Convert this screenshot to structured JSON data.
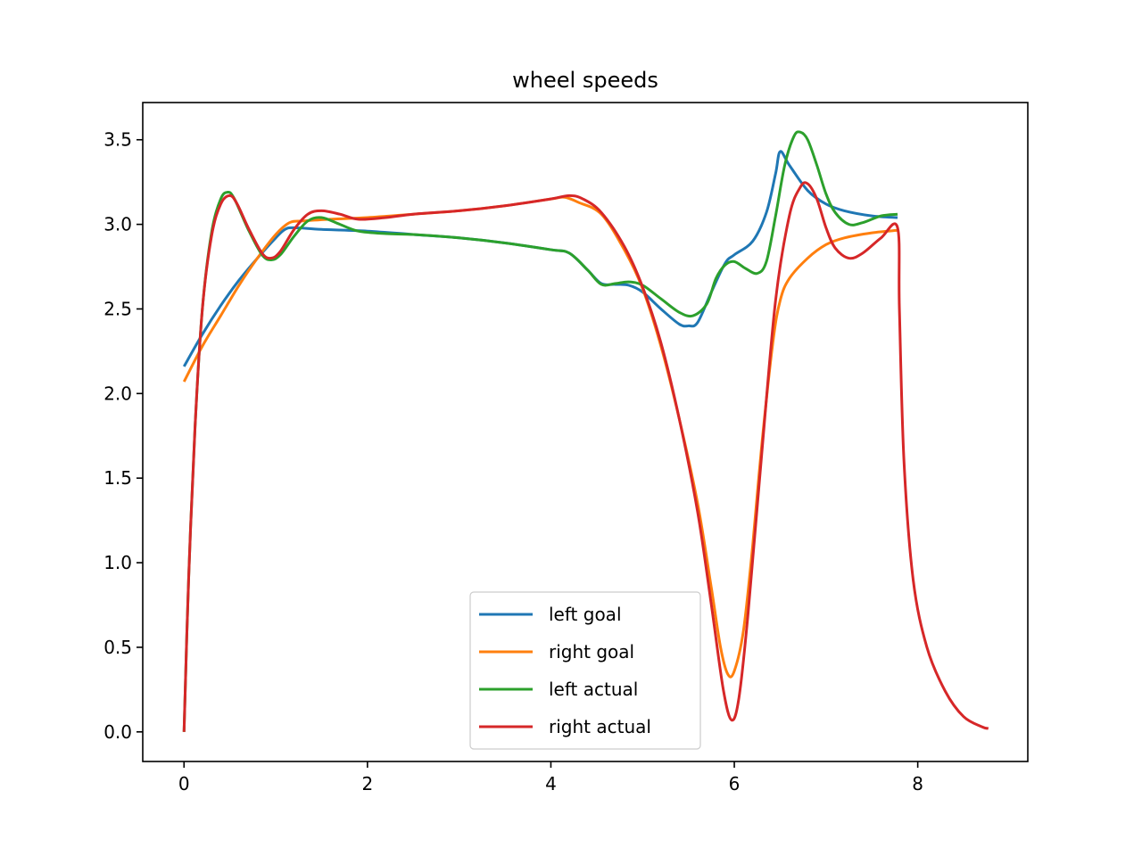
{
  "chart_data": {
    "type": "line",
    "title": "wheel speeds",
    "xlabel": "",
    "ylabel": "",
    "xlim": [
      -0.45,
      9.2
    ],
    "ylim": [
      -0.175,
      3.72
    ],
    "x_ticks": [
      0,
      2,
      4,
      6,
      8
    ],
    "x_tick_labels": [
      "0",
      "2",
      "4",
      "6",
      "8"
    ],
    "y_ticks": [
      0.0,
      0.5,
      1.0,
      1.5,
      2.0,
      2.5,
      3.0,
      3.5
    ],
    "y_tick_labels": [
      "0.0",
      "0.5",
      "1.0",
      "1.5",
      "2.0",
      "2.5",
      "3.0",
      "3.5"
    ],
    "grid": false,
    "legend_position": "lower-center",
    "series": [
      {
        "name": "left goal",
        "color": "#1f77b4",
        "points": [
          [
            0,
            2.16
          ],
          [
            0.2,
            2.35
          ],
          [
            0.4,
            2.52
          ],
          [
            0.6,
            2.67
          ],
          [
            0.8,
            2.8
          ],
          [
            1.0,
            2.92
          ],
          [
            1.1,
            2.97
          ],
          [
            1.2,
            2.98
          ],
          [
            1.5,
            2.97
          ],
          [
            2.0,
            2.96
          ],
          [
            2.5,
            2.94
          ],
          [
            3.0,
            2.92
          ],
          [
            3.5,
            2.89
          ],
          [
            4.0,
            2.85
          ],
          [
            4.2,
            2.83
          ],
          [
            4.4,
            2.73
          ],
          [
            4.55,
            2.65
          ],
          [
            4.7,
            2.645
          ],
          [
            4.85,
            2.64
          ],
          [
            5.0,
            2.6
          ],
          [
            5.2,
            2.5
          ],
          [
            5.4,
            2.41
          ],
          [
            5.5,
            2.4
          ],
          [
            5.6,
            2.42
          ],
          [
            5.75,
            2.6
          ],
          [
            5.9,
            2.77
          ],
          [
            6.0,
            2.82
          ],
          [
            6.2,
            2.9
          ],
          [
            6.35,
            3.07
          ],
          [
            6.45,
            3.3
          ],
          [
            6.5,
            3.43
          ],
          [
            6.6,
            3.35
          ],
          [
            6.8,
            3.2
          ],
          [
            7.0,
            3.12
          ],
          [
            7.2,
            3.08
          ],
          [
            7.5,
            3.05
          ],
          [
            7.78,
            3.04
          ]
        ]
      },
      {
        "name": "right goal",
        "color": "#ff7f0e",
        "points": [
          [
            0,
            2.07
          ],
          [
            0.2,
            2.28
          ],
          [
            0.4,
            2.46
          ],
          [
            0.6,
            2.64
          ],
          [
            0.8,
            2.8
          ],
          [
            1.0,
            2.94
          ],
          [
            1.15,
            3.01
          ],
          [
            1.3,
            3.02
          ],
          [
            1.6,
            3.03
          ],
          [
            2.0,
            3.04
          ],
          [
            2.5,
            3.06
          ],
          [
            3.0,
            3.08
          ],
          [
            3.5,
            3.11
          ],
          [
            4.0,
            3.15
          ],
          [
            4.15,
            3.16
          ],
          [
            4.3,
            3.13
          ],
          [
            4.55,
            3.06
          ],
          [
            4.8,
            2.85
          ],
          [
            5.0,
            2.62
          ],
          [
            5.2,
            2.28
          ],
          [
            5.4,
            1.85
          ],
          [
            5.6,
            1.35
          ],
          [
            5.75,
            0.85
          ],
          [
            5.85,
            0.5
          ],
          [
            5.93,
            0.34
          ],
          [
            6.0,
            0.36
          ],
          [
            6.1,
            0.6
          ],
          [
            6.2,
            1.1
          ],
          [
            6.3,
            1.7
          ],
          [
            6.42,
            2.3
          ],
          [
            6.5,
            2.55
          ],
          [
            6.6,
            2.68
          ],
          [
            6.8,
            2.8
          ],
          [
            7.0,
            2.88
          ],
          [
            7.2,
            2.92
          ],
          [
            7.5,
            2.95
          ],
          [
            7.78,
            2.965
          ]
        ]
      },
      {
        "name": "left actual",
        "color": "#2ca02c",
        "points": [
          [
            0,
            0.0
          ],
          [
            0.05,
            0.9
          ],
          [
            0.12,
            1.8
          ],
          [
            0.2,
            2.5
          ],
          [
            0.3,
            2.95
          ],
          [
            0.4,
            3.15
          ],
          [
            0.48,
            3.19
          ],
          [
            0.55,
            3.15
          ],
          [
            0.7,
            2.97
          ],
          [
            0.85,
            2.82
          ],
          [
            0.95,
            2.79
          ],
          [
            1.05,
            2.82
          ],
          [
            1.2,
            2.93
          ],
          [
            1.35,
            3.02
          ],
          [
            1.5,
            3.04
          ],
          [
            1.7,
            3.0
          ],
          [
            1.9,
            2.96
          ],
          [
            2.2,
            2.945
          ],
          [
            2.5,
            2.94
          ],
          [
            3.0,
            2.92
          ],
          [
            3.5,
            2.89
          ],
          [
            4.0,
            2.85
          ],
          [
            4.2,
            2.83
          ],
          [
            4.4,
            2.73
          ],
          [
            4.55,
            2.645
          ],
          [
            4.7,
            2.65
          ],
          [
            4.85,
            2.66
          ],
          [
            5.0,
            2.64
          ],
          [
            5.2,
            2.56
          ],
          [
            5.4,
            2.48
          ],
          [
            5.55,
            2.46
          ],
          [
            5.7,
            2.53
          ],
          [
            5.8,
            2.68
          ],
          [
            5.9,
            2.76
          ],
          [
            6.0,
            2.78
          ],
          [
            6.12,
            2.74
          ],
          [
            6.25,
            2.71
          ],
          [
            6.35,
            2.78
          ],
          [
            6.45,
            3.05
          ],
          [
            6.55,
            3.35
          ],
          [
            6.65,
            3.52
          ],
          [
            6.72,
            3.545
          ],
          [
            6.8,
            3.5
          ],
          [
            6.9,
            3.35
          ],
          [
            7.0,
            3.18
          ],
          [
            7.1,
            3.07
          ],
          [
            7.25,
            3.0
          ],
          [
            7.4,
            3.01
          ],
          [
            7.6,
            3.05
          ],
          [
            7.78,
            3.06
          ]
        ]
      },
      {
        "name": "right actual",
        "color": "#d62728",
        "points": [
          [
            0,
            0.0
          ],
          [
            0.05,
            0.9
          ],
          [
            0.12,
            1.8
          ],
          [
            0.2,
            2.5
          ],
          [
            0.3,
            2.93
          ],
          [
            0.4,
            3.12
          ],
          [
            0.5,
            3.17
          ],
          [
            0.58,
            3.12
          ],
          [
            0.7,
            2.98
          ],
          [
            0.85,
            2.83
          ],
          [
            0.95,
            2.8
          ],
          [
            1.05,
            2.84
          ],
          [
            1.2,
            2.97
          ],
          [
            1.35,
            3.06
          ],
          [
            1.5,
            3.08
          ],
          [
            1.7,
            3.06
          ],
          [
            1.9,
            3.03
          ],
          [
            2.2,
            3.04
          ],
          [
            2.5,
            3.06
          ],
          [
            3.0,
            3.08
          ],
          [
            3.5,
            3.11
          ],
          [
            4.0,
            3.15
          ],
          [
            4.2,
            3.17
          ],
          [
            4.35,
            3.15
          ],
          [
            4.55,
            3.07
          ],
          [
            4.8,
            2.87
          ],
          [
            5.0,
            2.63
          ],
          [
            5.2,
            2.3
          ],
          [
            5.4,
            1.85
          ],
          [
            5.6,
            1.3
          ],
          [
            5.75,
            0.75
          ],
          [
            5.88,
            0.25
          ],
          [
            5.97,
            0.07
          ],
          [
            6.05,
            0.2
          ],
          [
            6.15,
            0.7
          ],
          [
            6.3,
            1.65
          ],
          [
            6.45,
            2.55
          ],
          [
            6.6,
            3.05
          ],
          [
            6.72,
            3.22
          ],
          [
            6.8,
            3.24
          ],
          [
            6.9,
            3.15
          ],
          [
            7.0,
            2.98
          ],
          [
            7.1,
            2.86
          ],
          [
            7.25,
            2.8
          ],
          [
            7.4,
            2.83
          ],
          [
            7.6,
            2.92
          ],
          [
            7.78,
            2.98
          ],
          [
            7.8,
            2.5
          ],
          [
            7.85,
            1.6
          ],
          [
            7.95,
            0.9
          ],
          [
            8.1,
            0.5
          ],
          [
            8.3,
            0.24
          ],
          [
            8.5,
            0.09
          ],
          [
            8.7,
            0.03
          ],
          [
            8.77,
            0.02
          ]
        ]
      }
    ]
  }
}
